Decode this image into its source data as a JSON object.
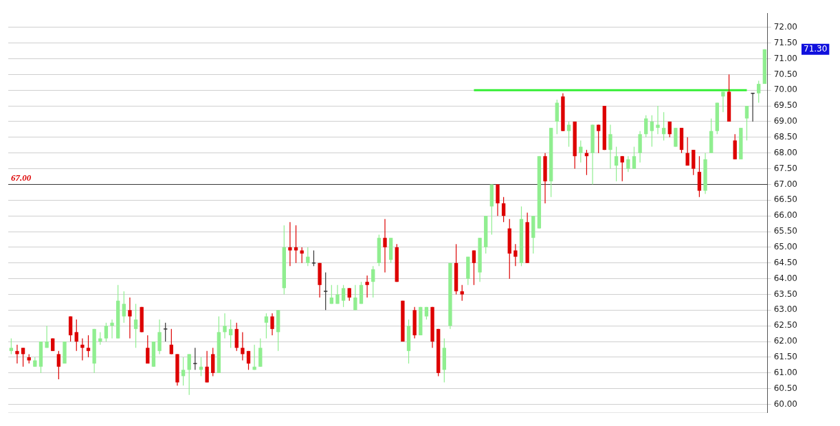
{
  "chart_data": {
    "type": "candlestick",
    "categories": [
      null,
      null,
      null,
      null,
      null,
      null,
      null,
      null,
      null,
      null,
      null,
      null,
      null,
      null,
      null,
      null,
      null,
      null,
      null,
      null,
      null,
      null,
      null,
      null,
      null,
      null,
      null,
      null,
      null,
      null,
      null,
      null,
      null,
      null,
      null,
      null,
      null,
      null,
      null,
      null,
      null,
      null,
      null,
      null,
      null,
      null,
      null,
      null,
      null,
      null,
      null,
      null,
      null,
      null,
      null,
      null,
      null,
      null,
      null,
      null,
      null,
      null,
      null,
      null,
      null,
      null,
      null,
      null,
      null,
      null,
      null,
      null,
      null,
      null,
      null,
      null,
      null,
      null,
      null,
      null,
      null,
      null,
      null,
      null,
      null,
      null,
      null,
      null,
      null,
      null,
      null,
      null,
      null,
      null,
      null,
      null,
      null,
      null,
      null,
      null,
      null,
      null,
      null,
      null,
      null,
      null,
      null,
      null,
      null,
      null,
      null,
      null,
      null,
      null,
      null,
      null,
      null,
      null,
      null,
      null,
      null,
      null,
      null,
      null,
      null,
      null,
      null,
      null
    ],
    "ohlc": [
      [
        61.7,
        62.1,
        61.6,
        61.8
      ],
      [
        61.7,
        61.9,
        61.3,
        61.6
      ],
      [
        61.8,
        61.8,
        61.2,
        61.6
      ],
      [
        61.5,
        61.6,
        61.3,
        61.4
      ],
      [
        61.2,
        61.5,
        61.2,
        61.4
      ],
      [
        61.2,
        62.0,
        61.0,
        62.0
      ],
      [
        61.8,
        62.5,
        61.8,
        62.0
      ],
      [
        62.1,
        62.1,
        61.7,
        61.7
      ],
      [
        61.6,
        61.7,
        60.8,
        61.2
      ],
      [
        61.3,
        62.0,
        61.3,
        62.0
      ],
      [
        62.8,
        62.8,
        62.0,
        62.2
      ],
      [
        62.3,
        62.7,
        61.7,
        62.0
      ],
      [
        61.9,
        62.1,
        61.4,
        61.8
      ],
      [
        61.8,
        62.2,
        61.5,
        61.7
      ],
      [
        61.3,
        62.4,
        61.0,
        62.4
      ],
      [
        62.0,
        62.3,
        61.9,
        62.1
      ],
      [
        62.1,
        62.6,
        62.0,
        62.5
      ],
      [
        62.5,
        62.7,
        62.1,
        62.6
      ],
      [
        62.1,
        63.8,
        62.1,
        63.3
      ],
      [
        62.8,
        63.6,
        62.6,
        63.2
      ],
      [
        63.0,
        63.4,
        62.1,
        62.8
      ],
      [
        62.4,
        63.2,
        61.8,
        62.7
      ],
      [
        63.1,
        63.1,
        62.3,
        62.3
      ],
      [
        61.8,
        62.2,
        61.3,
        61.3
      ],
      [
        61.2,
        62.0,
        61.2,
        62.0
      ],
      [
        61.7,
        62.7,
        61.6,
        62.3
      ],
      [
        62.4,
        62.6,
        62.0,
        62.4
      ],
      [
        61.9,
        62.4,
        61.6,
        61.6
      ],
      [
        61.6,
        61.6,
        60.6,
        60.7
      ],
      [
        60.9,
        61.5,
        60.6,
        61.1
      ],
      [
        61.1,
        61.6,
        60.3,
        61.6
      ],
      [
        61.3,
        61.8,
        61.1,
        61.3
      ],
      [
        61.1,
        61.5,
        60.9,
        61.2
      ],
      [
        61.2,
        61.7,
        60.7,
        60.7
      ],
      [
        61.6,
        61.8,
        60.9,
        61.0
      ],
      [
        61.0,
        62.8,
        61.0,
        62.3
      ],
      [
        62.3,
        62.9,
        62.1,
        62.5
      ],
      [
        62.2,
        62.7,
        61.8,
        62.4
      ],
      [
        62.4,
        62.6,
        61.7,
        61.8
      ],
      [
        61.8,
        62.3,
        61.4,
        61.6
      ],
      [
        61.7,
        61.7,
        61.1,
        61.3
      ],
      [
        61.1,
        61.9,
        61.1,
        61.2
      ],
      [
        61.2,
        62.1,
        61.2,
        61.8
      ],
      [
        62.6,
        62.9,
        62.1,
        62.8
      ],
      [
        62.8,
        62.9,
        62.2,
        62.4
      ],
      [
        62.3,
        63.0,
        61.7,
        63.0
      ],
      [
        63.7,
        65.7,
        63.5,
        65.0
      ],
      [
        65.0,
        65.8,
        64.4,
        64.9
      ],
      [
        65.0,
        65.7,
        64.5,
        64.9
      ],
      [
        64.9,
        65.0,
        64.5,
        64.8
      ],
      [
        64.5,
        65.0,
        64.4,
        64.7
      ],
      [
        64.5,
        64.9,
        64.4,
        64.5
      ],
      [
        64.5,
        64.5,
        63.4,
        63.8
      ],
      [
        63.6,
        64.2,
        63.0,
        63.6
      ],
      [
        63.2,
        63.8,
        63.2,
        63.4
      ],
      [
        63.2,
        63.8,
        63.2,
        63.5
      ],
      [
        63.3,
        63.8,
        63.1,
        63.7
      ],
      [
        63.7,
        63.7,
        63.3,
        63.4
      ],
      [
        63.0,
        63.8,
        63.0,
        63.4
      ],
      [
        63.2,
        63.9,
        63.2,
        63.8
      ],
      [
        63.9,
        64.1,
        63.4,
        63.8
      ],
      [
        63.9,
        64.4,
        63.4,
        64.3
      ],
      [
        64.5,
        65.4,
        64.4,
        65.3
      ],
      [
        65.3,
        65.9,
        64.2,
        65.0
      ],
      [
        64.6,
        65.3,
        64.5,
        65.3
      ],
      [
        65.0,
        65.1,
        63.9,
        63.9
      ],
      [
        63.3,
        63.3,
        62.0,
        62.0
      ],
      [
        61.7,
        62.7,
        61.3,
        62.5
      ],
      [
        63.0,
        63.1,
        62.1,
        62.2
      ],
      [
        62.2,
        63.1,
        62.2,
        63.1
      ],
      [
        62.8,
        63.1,
        62.7,
        63.1
      ],
      [
        63.1,
        63.1,
        61.8,
        62.0
      ],
      [
        62.4,
        62.4,
        60.9,
        61.0
      ],
      [
        61.1,
        62.1,
        60.7,
        61.8
      ],
      [
        62.5,
        64.5,
        62.4,
        64.5
      ],
      [
        64.5,
        65.1,
        63.5,
        63.6
      ],
      [
        63.6,
        63.8,
        63.3,
        63.5
      ],
      [
        64.0,
        64.7,
        63.8,
        64.7
      ],
      [
        64.9,
        64.9,
        63.8,
        64.5
      ],
      [
        64.2,
        65.3,
        63.9,
        65.3
      ],
      [
        65.0,
        66.0,
        64.8,
        66.0
      ],
      [
        66.3,
        67.0,
        65.4,
        67.0
      ],
      [
        67.0,
        67.0,
        66.0,
        66.4
      ],
      [
        66.4,
        66.6,
        65.8,
        66.0
      ],
      [
        65.6,
        65.9,
        64.0,
        64.8
      ],
      [
        64.9,
        65.1,
        64.4,
        64.7
      ],
      [
        64.5,
        66.3,
        64.4,
        65.9
      ],
      [
        65.8,
        66.1,
        64.5,
        64.5
      ],
      [
        65.3,
        66.0,
        64.8,
        66.0
      ],
      [
        65.6,
        67.9,
        65.6,
        67.9
      ],
      [
        67.9,
        68.0,
        66.4,
        67.1
      ],
      [
        67.1,
        68.8,
        66.6,
        68.8
      ],
      [
        69.0,
        69.7,
        68.6,
        69.6
      ],
      [
        69.8,
        69.9,
        68.7,
        68.7
      ],
      [
        68.7,
        69.0,
        68.2,
        68.9
      ],
      [
        69.0,
        69.0,
        67.5,
        67.9
      ],
      [
        68.0,
        68.4,
        67.7,
        68.2
      ],
      [
        68.0,
        68.1,
        67.3,
        67.9
      ],
      [
        68.0,
        68.9,
        67.0,
        68.9
      ],
      [
        68.9,
        68.9,
        68.0,
        68.7
      ],
      [
        69.5,
        69.5,
        68.1,
        68.1
      ],
      [
        68.1,
        68.9,
        67.5,
        68.6
      ],
      [
        67.6,
        68.2,
        67.1,
        67.9
      ],
      [
        67.9,
        67.9,
        67.1,
        67.7
      ],
      [
        67.5,
        67.9,
        67.4,
        67.8
      ],
      [
        67.5,
        68.2,
        67.5,
        67.9
      ],
      [
        68.0,
        68.7,
        67.7,
        68.6
      ],
      [
        68.6,
        69.2,
        68.5,
        69.1
      ],
      [
        68.7,
        69.2,
        68.2,
        69.0
      ],
      [
        68.8,
        69.5,
        68.6,
        68.9
      ],
      [
        68.6,
        69.3,
        68.4,
        68.8
      ],
      [
        69.0,
        69.0,
        68.5,
        68.6
      ],
      [
        68.2,
        68.8,
        68.2,
        68.8
      ],
      [
        68.8,
        68.8,
        68.0,
        68.1
      ],
      [
        68.0,
        68.5,
        67.6,
        67.6
      ],
      [
        68.1,
        68.1,
        67.3,
        67.5
      ],
      [
        67.4,
        67.9,
        66.6,
        66.8
      ],
      [
        66.8,
        68.0,
        66.7,
        67.8
      ],
      [
        68.0,
        69.1,
        68.0,
        68.7
      ],
      [
        68.7,
        69.6,
        68.6,
        69.6
      ],
      [
        69.8,
        69.95,
        69.3,
        69.95
      ],
      [
        69.95,
        70.5,
        69.0,
        69.0
      ],
      [
        68.4,
        68.6,
        67.8,
        67.8
      ],
      [
        67.8,
        68.8,
        67.8,
        68.8
      ],
      [
        69.1,
        69.5,
        68.4,
        69.5
      ],
      [
        69.9,
        69.9,
        69.0,
        69.9
      ],
      [
        69.9,
        70.3,
        69.6,
        70.2
      ],
      [
        70.2,
        71.3,
        70.2,
        71.3
      ]
    ],
    "colors": [
      "#90ee90",
      "#dd0000",
      "#dd0000",
      "#dd0000",
      "#90ee90",
      "#90ee90",
      "#90ee90",
      "#dd0000",
      "#dd0000",
      "#90ee90",
      "#dd0000",
      "#dd0000",
      "#dd0000",
      "#dd0000",
      "#90ee90",
      "#90ee90",
      "#90ee90",
      "#90ee90",
      "#90ee90",
      "#90ee90",
      "#dd0000",
      "#90ee90",
      "#dd0000",
      "#dd0000",
      "#90ee90",
      "#90ee90",
      "#333333",
      "#dd0000",
      "#dd0000",
      "#90ee90",
      "#90ee90",
      "#333333",
      "#90ee90",
      "#dd0000",
      "#dd0000",
      "#90ee90",
      "#90ee90",
      "#90ee90",
      "#dd0000",
      "#dd0000",
      "#dd0000",
      "#90ee90",
      "#90ee90",
      "#90ee90",
      "#dd0000",
      "#90ee90",
      "#90ee90",
      "#dd0000",
      "#dd0000",
      "#dd0000",
      "#90ee90",
      "#333333",
      "#dd0000",
      "#333333",
      "#90ee90",
      "#90ee90",
      "#90ee90",
      "#dd0000",
      "#90ee90",
      "#90ee90",
      "#dd0000",
      "#90ee90",
      "#90ee90",
      "#dd0000",
      "#90ee90",
      "#dd0000",
      "#dd0000",
      "#90ee90",
      "#dd0000",
      "#90ee90",
      "#90ee90",
      "#dd0000",
      "#dd0000",
      "#90ee90",
      "#90ee90",
      "#dd0000",
      "#dd0000",
      "#90ee90",
      "#dd0000",
      "#90ee90",
      "#90ee90",
      "#90ee90",
      "#dd0000",
      "#dd0000",
      "#dd0000",
      "#dd0000",
      "#90ee90",
      "#dd0000",
      "#90ee90",
      "#90ee90",
      "#dd0000",
      "#90ee90",
      "#90ee90",
      "#dd0000",
      "#90ee90",
      "#dd0000",
      "#90ee90",
      "#dd0000",
      "#90ee90",
      "#dd0000",
      "#dd0000",
      "#90ee90",
      "#90ee90",
      "#dd0000",
      "#90ee90",
      "#90ee90",
      "#90ee90",
      "#90ee90",
      "#90ee90",
      "#90ee90",
      "#90ee90",
      "#dd0000",
      "#90ee90",
      "#dd0000",
      "#dd0000",
      "#dd0000",
      "#dd0000",
      "#90ee90",
      "#90ee90",
      "#90ee90",
      "#90ee90",
      "#dd0000",
      "#dd0000",
      "#90ee90",
      "#90ee90",
      "#333333",
      "#90ee90",
      "#90ee90"
    ],
    "series": [
      {
        "type": "line",
        "color": "#33ee33",
        "values": [
          null,
          null,
          null,
          null,
          null,
          null,
          null,
          null,
          null,
          null,
          null,
          null,
          null,
          null,
          null,
          null,
          null,
          null,
          null,
          null,
          null,
          null,
          null,
          null,
          null,
          null,
          null,
          null,
          null,
          null,
          null,
          null,
          null,
          null,
          null,
          null,
          null,
          null,
          null,
          null,
          null,
          null,
          null,
          null,
          null,
          null,
          null,
          null,
          null,
          null,
          null,
          null,
          null,
          null,
          null,
          null,
          null,
          null,
          null,
          null,
          null,
          null,
          null,
          null,
          null,
          null,
          null,
          null,
          null,
          null,
          null,
          null,
          null,
          null,
          null,
          null,
          null,
          null,
          70,
          70,
          70,
          70,
          70,
          70,
          70,
          70,
          70,
          70,
          70,
          70,
          70,
          70,
          70,
          70,
          70,
          70,
          70,
          70,
          70,
          70,
          70,
          70,
          70,
          70,
          70,
          70,
          70,
          70,
          70,
          70,
          70,
          70,
          70,
          70,
          70,
          70,
          70,
          70,
          70,
          70,
          70,
          70,
          70,
          70,
          70,
          null,
          null,
          null
        ]
      }
    ],
    "ylim": [
      59.75,
      72.45
    ],
    "yticks": [
      {
        "value": 60,
        "label": "60.00"
      },
      {
        "value": 60.5,
        "label": "60.50"
      },
      {
        "value": 61,
        "label": "61.00"
      },
      {
        "value": 61.5,
        "label": "61.50"
      },
      {
        "value": 62,
        "label": "62.00"
      },
      {
        "value": 62.5,
        "label": "62.50"
      },
      {
        "value": 63,
        "label": "63.00"
      },
      {
        "value": 63.5,
        "label": "63.50"
      },
      {
        "value": 64,
        "label": "64.00"
      },
      {
        "value": 64.5,
        "label": "64.50"
      },
      {
        "value": 65,
        "label": "65.00"
      },
      {
        "value": 65.5,
        "label": "65.50"
      },
      {
        "value": 66,
        "label": "66.00"
      },
      {
        "value": 66.5,
        "label": "66.50"
      },
      {
        "value": 67,
        "label": "67.00"
      },
      {
        "value": 67.5,
        "label": "67.50"
      },
      {
        "value": 68,
        "label": "68.00"
      },
      {
        "value": 68.5,
        "label": "68.50"
      },
      {
        "value": 69,
        "label": "69.00"
      },
      {
        "value": 69.5,
        "label": "69.50"
      },
      {
        "value": 70,
        "label": "70.00"
      },
      {
        "value": 70.5,
        "label": "70.50"
      },
      {
        "value": 71,
        "label": "71.00"
      },
      {
        "value": 71.5,
        "label": "71.50"
      },
      {
        "value": 72,
        "label": "72.00"
      }
    ],
    "ref_lines": [
      {
        "axis": "y",
        "value": 67,
        "label": "67.00",
        "color": "#333333"
      }
    ],
    "annotations": [
      "71.30"
    ],
    "grid": "y",
    "legend": false,
    "tick_labels": "y"
  }
}
